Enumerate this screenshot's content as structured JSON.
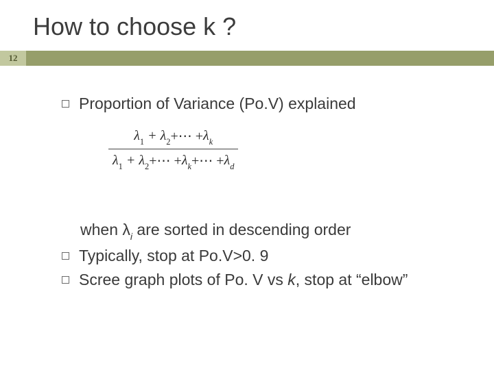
{
  "title": "How to choose k ?",
  "page_number": "12",
  "colors": {
    "stripe": "#969e6a",
    "pagebox_bg": "#c2c89f",
    "pagebox_fg": "#545a33",
    "text": "#3a3a3a",
    "bg": "#ffffff"
  },
  "bullets": {
    "b1": "Proportion of Variance (Po.V) explained",
    "indent_prefix": "when λ",
    "indent_sub": "i",
    "indent_suffix": " are sorted in descending order",
    "b2": "Typically, stop at Po.V>0. 9",
    "b3_a": "Scree graph plots of Po. V vs ",
    "b3_k": "k",
    "b3_b": ", stop at “elbow”"
  },
  "formula": {
    "sym": "λ",
    "plus": " + ",
    "dots_plus": " +⋯ + ",
    "num_subs": [
      "1",
      "2",
      "k"
    ],
    "den_subs": [
      "1",
      "2",
      "k",
      "d"
    ]
  }
}
